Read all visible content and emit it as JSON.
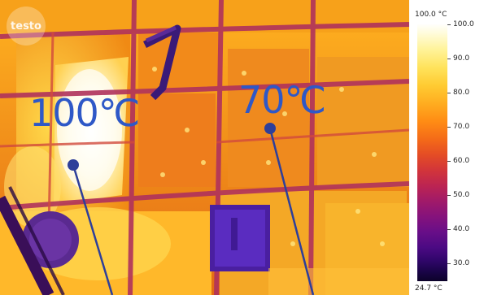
{
  "brand": {
    "logo_text": "testo"
  },
  "measurements": [
    {
      "label": "100℃"
    },
    {
      "label": "70℃"
    }
  ],
  "scale": {
    "max_label": "100.0 °C",
    "min_label": "24.7 °C",
    "max_value": 100.0,
    "min_value": 24.7,
    "ticks": [
      "100.0",
      "90.0",
      "80.0",
      "70.0",
      "60.0",
      "50.0",
      "40.0",
      "30.0"
    ],
    "palette": "iron"
  },
  "colors": {
    "annotation": "#2e3f9a",
    "label": "#2e58c7"
  }
}
